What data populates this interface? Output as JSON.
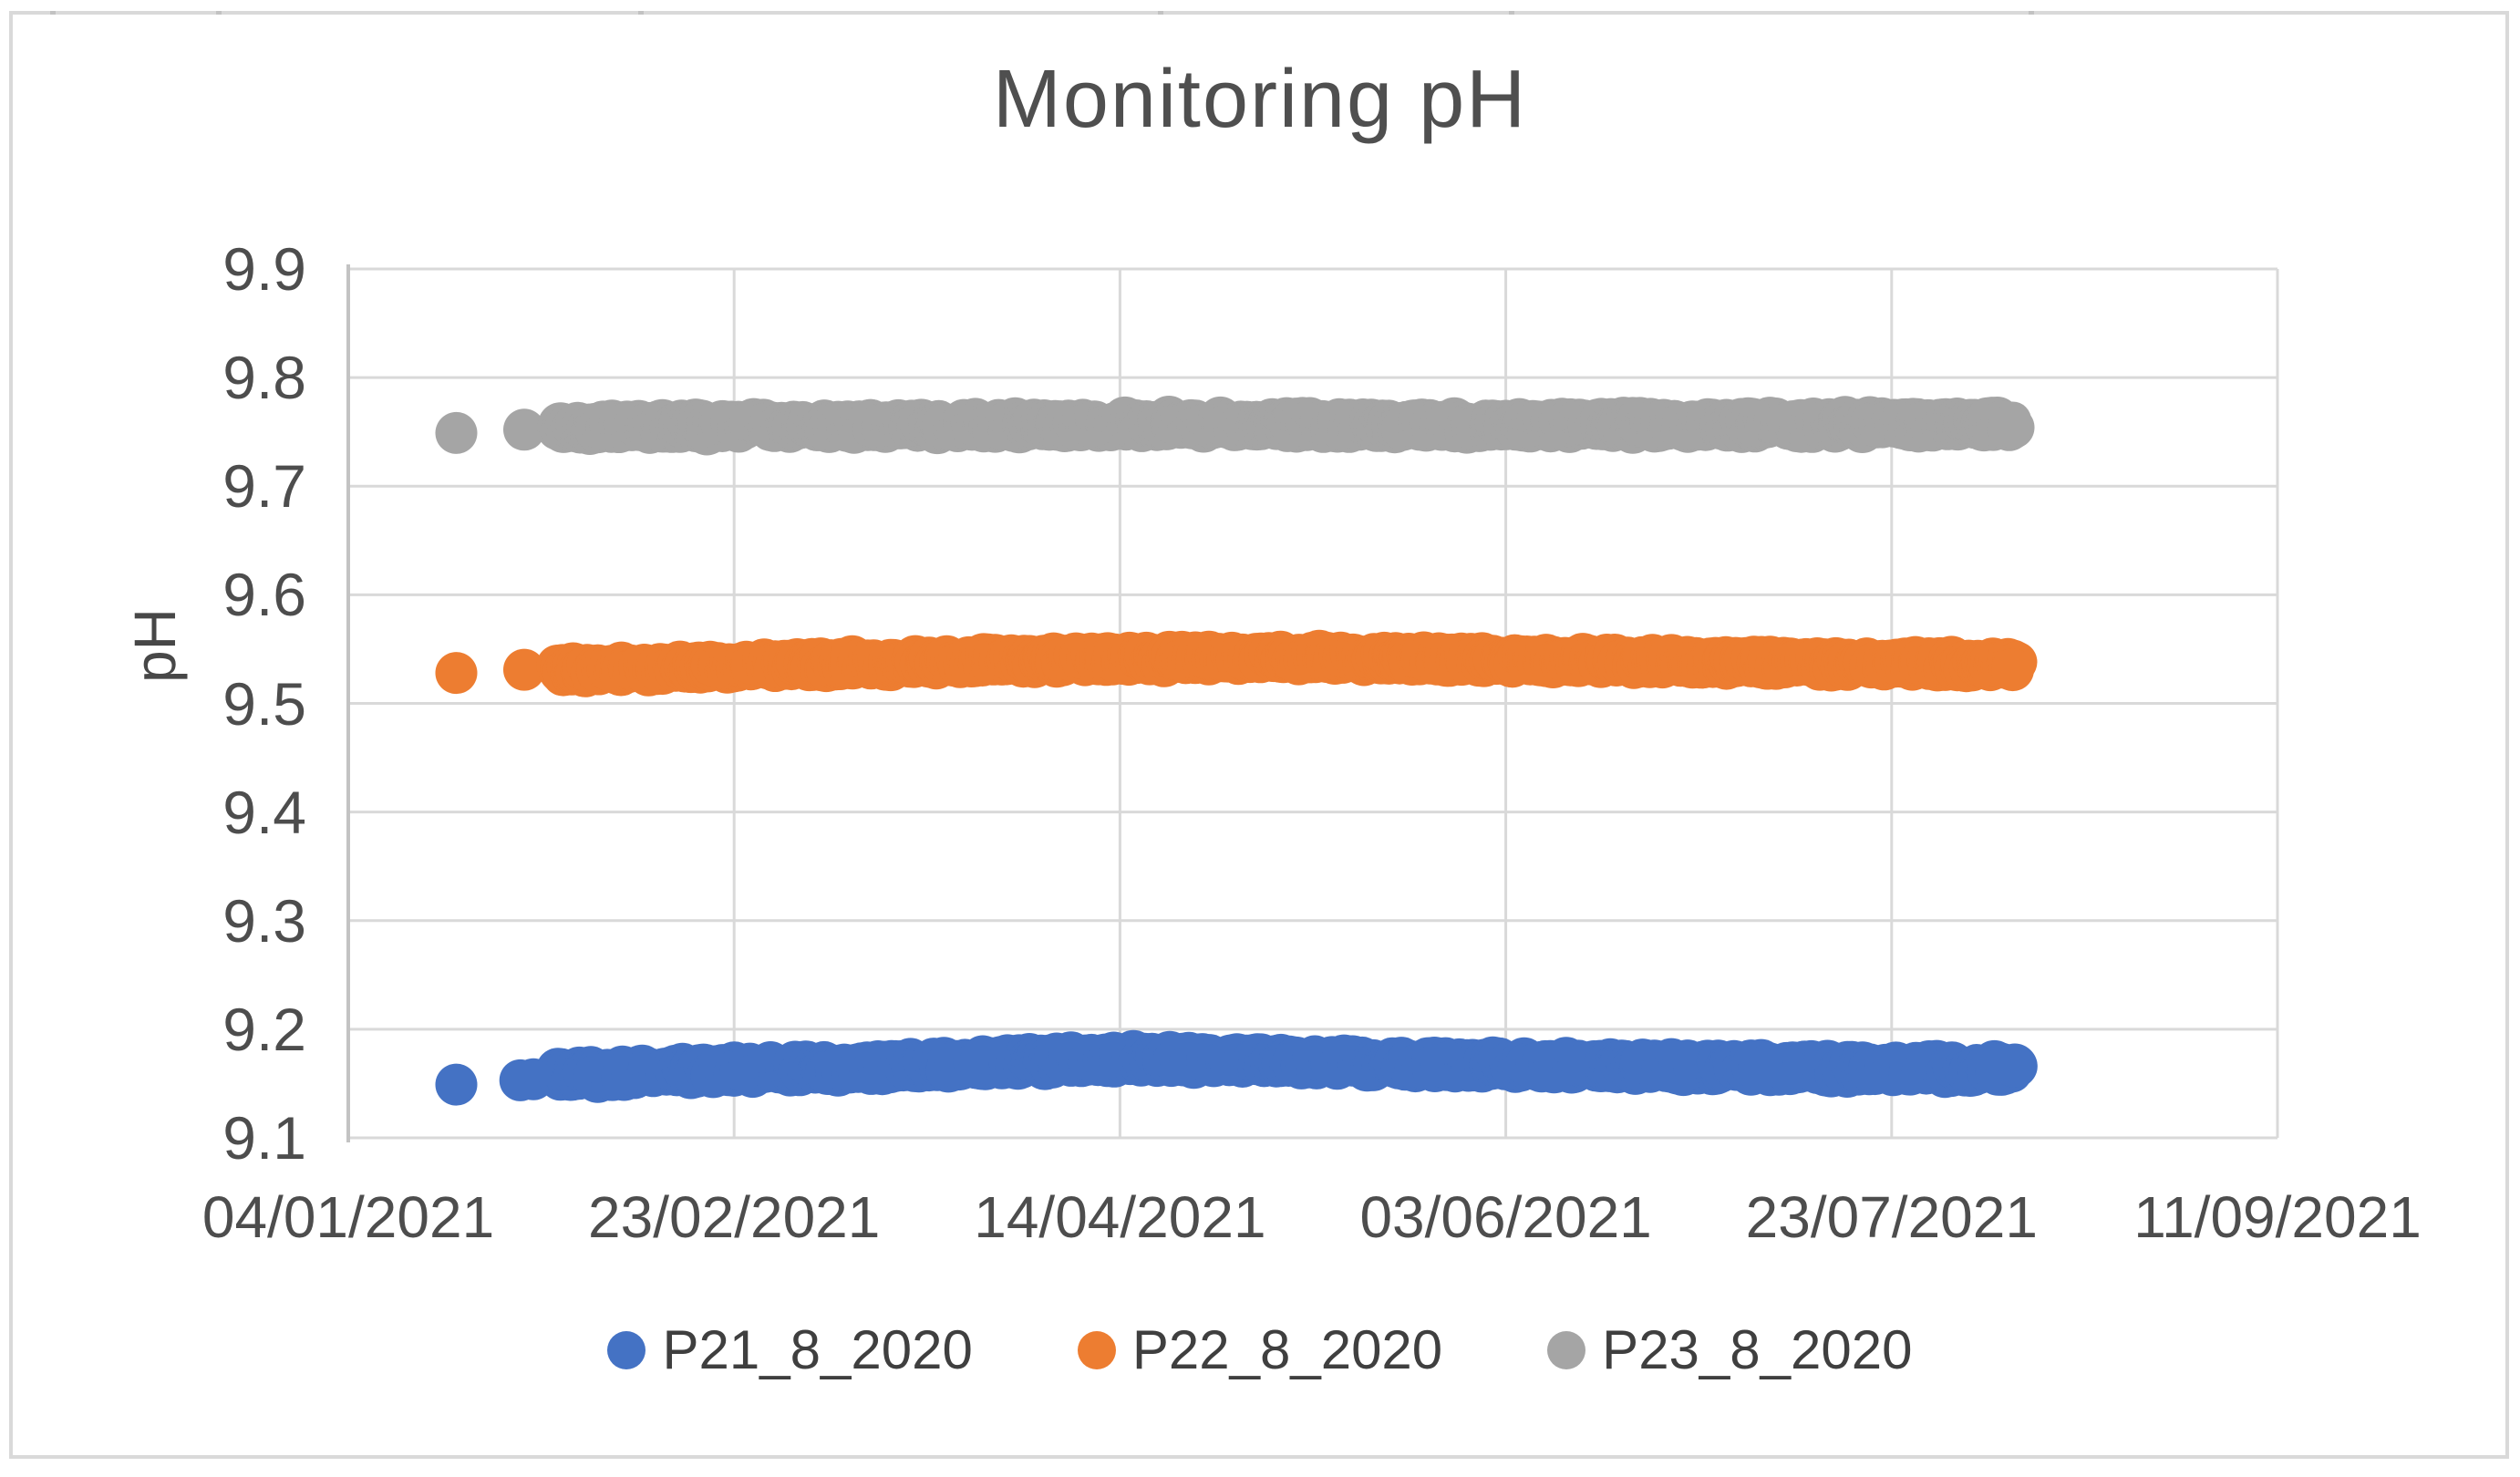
{
  "chart_data": {
    "type": "scatter",
    "title": "Monitoring pH",
    "ylabel": "pH",
    "ylim": [
      9.1,
      9.9
    ],
    "yticks": [
      "9.9",
      "9.8",
      "9.7",
      "9.6",
      "9.5",
      "9.4",
      "9.3",
      "9.2",
      "9.1"
    ],
    "xticks": [
      "04/01/2021",
      "23/02/2021",
      "14/04/2021",
      "03/06/2021",
      "23/07/2021",
      "11/09/2021"
    ],
    "x_total_days": 250,
    "x_tick_interval_days": 50,
    "grid": true,
    "legend_position": "bottom",
    "colors": {
      "grid": "#d9d9d9",
      "axis": "#c3c3c3",
      "frame": "#d9d9d9",
      "tick_text": "#4d4d4d",
      "title_text": "#4f4f4f",
      "legend_text": "#3f3f3f"
    },
    "series": [
      {
        "name": "P21_8_2020",
        "color": "#4472C4",
        "approx_ph": 9.16,
        "markers": [
          {
            "day": 14,
            "ph": 9.149
          },
          {
            "day": 22.3,
            "ph": 9.153
          },
          {
            "day": 24,
            "ph": 9.154
          }
        ],
        "segments": [
          {
            "from": 27.3,
            "to": 52.6
          },
          {
            "from": 54,
            "to": 216
          }
        ],
        "profile": [
          [
            27.3,
            9.158
          ],
          [
            52.6,
            9.163
          ],
          [
            54,
            9.163
          ],
          [
            75,
            9.167
          ],
          [
            95,
            9.172
          ],
          [
            105,
            9.173
          ],
          [
            120,
            9.17
          ],
          [
            145,
            9.167
          ],
          [
            175,
            9.165
          ],
          [
            205,
            9.163
          ],
          [
            216,
            9.163
          ]
        ],
        "thickness": 1.15
      },
      {
        "name": "P22_8_2020",
        "color": "#ED7D31",
        "approx_ph": 9.53,
        "markers": [
          {
            "day": 14,
            "ph": 9.528
          },
          {
            "day": 22.8,
            "ph": 9.531
          }
        ],
        "segments": [
          {
            "from": 27.3,
            "to": 52.6
          },
          {
            "from": 54,
            "to": 216
          }
        ],
        "profile": [
          [
            27.3,
            9.531
          ],
          [
            52.6,
            9.534
          ],
          [
            54,
            9.535
          ],
          [
            90,
            9.54
          ],
          [
            120,
            9.542
          ],
          [
            150,
            9.54
          ],
          [
            185,
            9.537
          ],
          [
            216,
            9.536
          ]
        ],
        "thickness": 1.0
      },
      {
        "name": "P23_8_2020",
        "color": "#A5A5A5",
        "approx_ph": 9.755,
        "markers": [
          {
            "day": 14,
            "ph": 9.749
          },
          {
            "day": 22.8,
            "ph": 9.752
          }
        ],
        "segments": [
          {
            "from": 27.3,
            "to": 52.6
          },
          {
            "from": 54,
            "to": 216
          }
        ],
        "profile": [
          [
            27.3,
            9.753
          ],
          [
            52.6,
            9.755
          ],
          [
            54,
            9.755
          ],
          [
            100,
            9.757
          ],
          [
            150,
            9.756
          ],
          [
            216,
            9.757
          ]
        ],
        "thickness": 1.05
      }
    ]
  },
  "border_notches": [
    {
      "x": 55,
      "w": 6
    },
    {
      "x": 237,
      "w": 6
    },
    {
      "x": 700,
      "w": 6
    },
    {
      "x": 1270,
      "w": 6
    },
    {
      "x": 1655,
      "w": 6
    },
    {
      "x": 2225,
      "w": 6
    }
  ]
}
